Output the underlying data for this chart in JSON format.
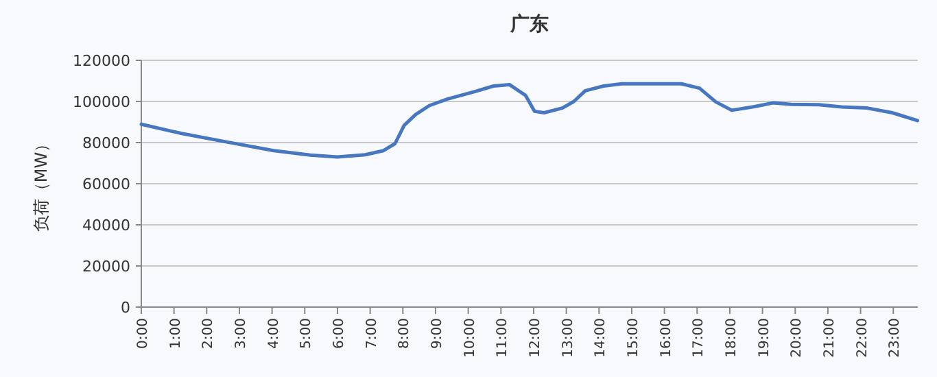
{
  "chart_data": {
    "type": "line",
    "title": "广东",
    "ylabel": "负荷（MW）",
    "x": [
      0,
      1.24,
      2.64,
      4.05,
      5.17,
      6.0,
      6.85,
      7.41,
      7.76,
      8.04,
      8.39,
      8.81,
      9.37,
      10.2,
      10.77,
      11.26,
      11.75,
      12.03,
      12.32,
      12.88,
      13.23,
      13.58,
      14.14,
      14.7,
      16.52,
      17.08,
      17.57,
      18.06,
      18.76,
      19.32,
      19.88,
      20.72,
      21.42,
      22.2,
      22.97,
      23.74
    ],
    "series": [
      {
        "color": "#4677c0",
        "values": [
          88900,
          84400,
          80200,
          76100,
          73900,
          73000,
          74100,
          76100,
          79500,
          88400,
          93600,
          98000,
          101200,
          104800,
          107500,
          108200,
          103000,
          95200,
          94500,
          96800,
          100000,
          105200,
          107500,
          108600,
          108600,
          106400,
          99800,
          95700,
          97500,
          99300,
          98600,
          98400,
          97300,
          96800,
          94500,
          90700
        ]
      }
    ],
    "xlim": [
      0,
      23.75
    ],
    "xticks": [
      {
        "value": 0,
        "label": "0:00"
      },
      {
        "value": 1,
        "label": "1:00"
      },
      {
        "value": 2,
        "label": "2:00"
      },
      {
        "value": 3,
        "label": "3:00"
      },
      {
        "value": 4,
        "label": "4:00"
      },
      {
        "value": 5,
        "label": "5:00"
      },
      {
        "value": 6,
        "label": "6:00"
      },
      {
        "value": 7,
        "label": "7:00"
      },
      {
        "value": 8,
        "label": "8:00"
      },
      {
        "value": 9,
        "label": "9:00"
      },
      {
        "value": 10,
        "label": "10:00"
      },
      {
        "value": 11,
        "label": "11:00"
      },
      {
        "value": 12,
        "label": "12:00"
      },
      {
        "value": 13,
        "label": "13:00"
      },
      {
        "value": 14,
        "label": "14:00"
      },
      {
        "value": 15,
        "label": "15:00"
      },
      {
        "value": 16,
        "label": "16:00"
      },
      {
        "value": 17,
        "label": "17:00"
      },
      {
        "value": 18,
        "label": "18:00"
      },
      {
        "value": 19,
        "label": "19:00"
      },
      {
        "value": 20,
        "label": "20:00"
      },
      {
        "value": 21,
        "label": "21:00"
      },
      {
        "value": 22,
        "label": "22:00"
      },
      {
        "value": 23,
        "label": "23:00"
      }
    ],
    "ylim": [
      0,
      120000
    ],
    "yticks": [
      0,
      20000,
      40000,
      60000,
      80000,
      100000,
      120000
    ],
    "grid": "y"
  }
}
